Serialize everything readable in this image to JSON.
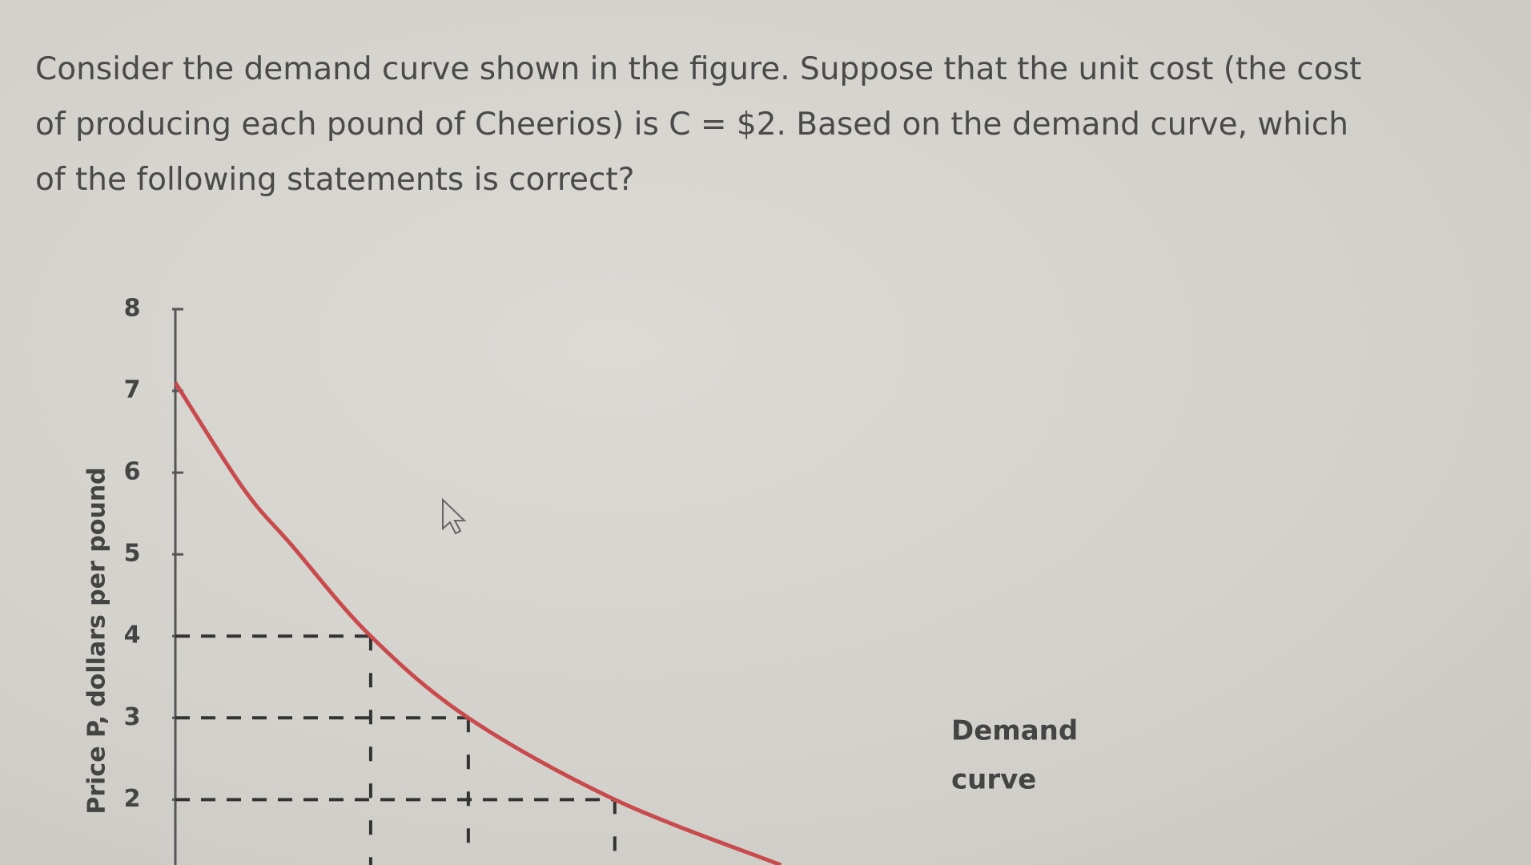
{
  "question": [
    "Consider the demand curve shown in the figure. Suppose that the unit cost (the cost",
    "of producing each pound of Cheerios) is C = $2. Based on the demand curve, which",
    "of the following statements is correct?"
  ],
  "chart_data": {
    "type": "line",
    "y_label": "Price P, dollars per pound",
    "curve_label": [
      "Demand",
      "curve"
    ],
    "x": [
      0,
      0.7,
      1.2,
      2,
      3,
      4.5,
      6.2
    ],
    "series": [
      {
        "name": "Demand curve",
        "color": "#c94a4c",
        "values": [
          7.1,
          5.8,
          5.1,
          4,
          3,
          2,
          1.2
        ]
      }
    ],
    "xlim": [
      0,
      13.8
    ],
    "ylim": [
      1.2,
      8
    ],
    "yticks": [
      2,
      3,
      4,
      5,
      6,
      7,
      8
    ]
  }
}
